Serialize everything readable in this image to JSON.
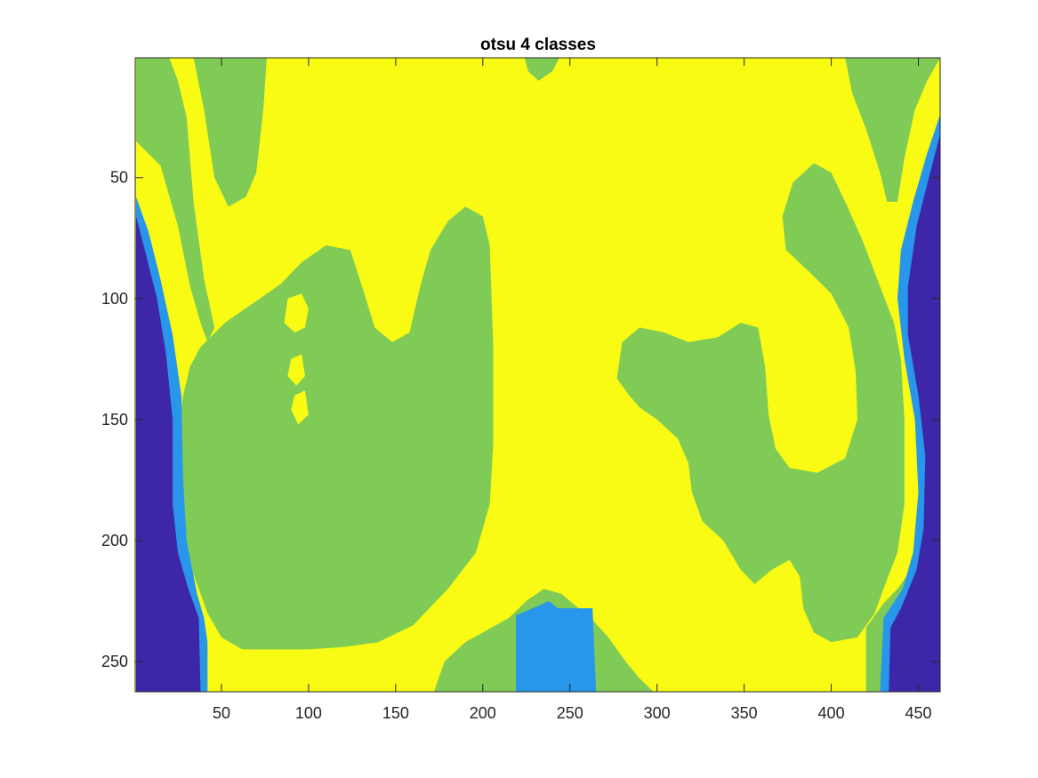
{
  "chart_data": {
    "type": "heatmap",
    "title": "otsu 4 classes",
    "xlabel": "",
    "ylabel": "",
    "xlim": [
      0.5,
      462.5
    ],
    "ylim": [
      0.5,
      262.5
    ],
    "y_reversed": true,
    "x_ticks": [
      50,
      100,
      150,
      200,
      250,
      300,
      350,
      400,
      450
    ],
    "y_ticks": [
      50,
      100,
      150,
      200,
      250
    ],
    "classes": [
      {
        "label": "1",
        "color": "#3E26A8"
      },
      {
        "label": "2",
        "color": "#2896EA"
      },
      {
        "label": "3",
        "color": "#7FCB56"
      },
      {
        "label": "4",
        "color": "#F9FB14"
      }
    ],
    "background_class": 4,
    "regions": [
      {
        "class": 3,
        "points": [
          [
            1,
            35
          ],
          [
            15,
            45
          ],
          [
            25,
            70
          ],
          [
            32,
            95
          ],
          [
            38,
            110
          ],
          [
            42,
            118
          ],
          [
            46,
            112
          ],
          [
            40,
            92
          ],
          [
            34,
            60
          ],
          [
            30,
            25
          ],
          [
            25,
            10
          ],
          [
            20,
            0.5
          ],
          [
            1,
            0.5
          ]
        ]
      },
      {
        "class": 3,
        "points": [
          [
            34,
            0.5
          ],
          [
            40,
            22
          ],
          [
            46,
            50
          ],
          [
            54,
            62
          ],
          [
            64,
            58
          ],
          [
            70,
            48
          ],
          [
            74,
            22
          ],
          [
            76,
            0.5
          ]
        ]
      },
      {
        "class": 3,
        "points": [
          [
            38,
            120
          ],
          [
            52,
            110
          ],
          [
            68,
            102
          ],
          [
            84,
            94
          ],
          [
            96,
            85
          ],
          [
            110,
            78
          ],
          [
            124,
            80
          ],
          [
            132,
            98
          ],
          [
            138,
            112
          ],
          [
            148,
            118
          ],
          [
            158,
            114
          ],
          [
            164,
            95
          ],
          [
            170,
            80
          ],
          [
            180,
            68
          ],
          [
            190,
            62
          ],
          [
            200,
            66
          ],
          [
            204,
            78
          ],
          [
            206,
            120
          ],
          [
            206,
            160
          ],
          [
            204,
            185
          ],
          [
            196,
            205
          ],
          [
            180,
            220
          ],
          [
            160,
            235
          ],
          [
            140,
            242
          ],
          [
            120,
            244
          ],
          [
            100,
            245
          ],
          [
            80,
            245
          ],
          [
            62,
            245
          ],
          [
            50,
            240
          ],
          [
            42,
            230
          ],
          [
            32,
            210
          ],
          [
            26,
            185
          ],
          [
            24,
            160
          ],
          [
            28,
            140
          ],
          [
            32,
            128
          ]
        ]
      },
      {
        "class": 4,
        "points": [
          [
            88,
            100
          ],
          [
            96,
            98
          ],
          [
            100,
            104
          ],
          [
            98,
            112
          ],
          [
            92,
            114
          ],
          [
            86,
            110
          ]
        ]
      },
      {
        "class": 4,
        "points": [
          [
            90,
            125
          ],
          [
            96,
            123
          ],
          [
            98,
            132
          ],
          [
            93,
            136
          ],
          [
            88,
            132
          ]
        ]
      },
      {
        "class": 4,
        "points": [
          [
            92,
            140
          ],
          [
            98,
            138
          ],
          [
            100,
            148
          ],
          [
            94,
            152
          ],
          [
            90,
            146
          ]
        ]
      },
      {
        "class": 3,
        "points": [
          [
            172,
            262.5
          ],
          [
            178,
            250
          ],
          [
            190,
            242
          ],
          [
            205,
            236
          ],
          [
            215,
            232
          ],
          [
            225,
            225
          ],
          [
            235,
            220
          ],
          [
            245,
            222
          ],
          [
            255,
            228
          ],
          [
            262,
            232
          ],
          [
            272,
            240
          ],
          [
            282,
            250
          ],
          [
            290,
            257
          ],
          [
            298,
            262.5
          ]
        ]
      },
      {
        "class": 2,
        "points": [
          [
            219,
            231
          ],
          [
            232,
            227
          ],
          [
            238,
            225
          ],
          [
            243,
            228
          ],
          [
            263,
            228
          ],
          [
            265,
            262.5
          ],
          [
            219,
            262.5
          ]
        ]
      },
      {
        "class": 3,
        "points": [
          [
            224,
            0.5
          ],
          [
            226,
            6
          ],
          [
            232,
            10
          ],
          [
            240,
            6
          ],
          [
            244,
            0.5
          ]
        ]
      },
      {
        "class": 3,
        "points": [
          [
            277,
            133
          ],
          [
            280,
            118
          ],
          [
            290,
            112
          ],
          [
            304,
            114
          ],
          [
            318,
            118
          ],
          [
            335,
            116
          ],
          [
            348,
            110
          ],
          [
            358,
            112
          ],
          [
            362,
            128
          ],
          [
            364,
            148
          ],
          [
            368,
            162
          ],
          [
            376,
            170
          ],
          [
            392,
            172
          ],
          [
            408,
            166
          ],
          [
            415,
            150
          ],
          [
            414,
            130
          ],
          [
            410,
            112
          ],
          [
            400,
            98
          ],
          [
            386,
            88
          ],
          [
            374,
            80
          ],
          [
            372,
            66
          ],
          [
            378,
            52
          ],
          [
            390,
            44
          ],
          [
            400,
            48
          ],
          [
            408,
            60
          ],
          [
            418,
            76
          ],
          [
            428,
            95
          ],
          [
            436,
            110
          ],
          [
            440,
            125
          ],
          [
            442,
            150
          ],
          [
            442,
            185
          ],
          [
            438,
            205
          ],
          [
            430,
            220
          ],
          [
            425,
            230
          ],
          [
            415,
            240
          ],
          [
            400,
            242
          ],
          [
            390,
            238
          ],
          [
            384,
            228
          ],
          [
            382,
            215
          ],
          [
            376,
            208
          ],
          [
            366,
            212
          ],
          [
            356,
            218
          ],
          [
            348,
            212
          ],
          [
            338,
            200
          ],
          [
            326,
            192
          ],
          [
            320,
            180
          ],
          [
            318,
            168
          ],
          [
            312,
            158
          ],
          [
            300,
            150
          ],
          [
            290,
            145
          ],
          [
            284,
            140
          ]
        ]
      },
      {
        "class": 3,
        "points": [
          [
            408,
            0.5
          ],
          [
            412,
            15
          ],
          [
            420,
            30
          ],
          [
            428,
            48
          ],
          [
            432,
            60
          ],
          [
            438,
            60
          ],
          [
            442,
            42
          ],
          [
            448,
            22
          ],
          [
            455,
            10
          ],
          [
            462.5,
            0.5
          ]
        ]
      },
      {
        "class": 3,
        "points": [
          [
            420,
            236
          ],
          [
            430,
            226
          ],
          [
            438,
            220
          ],
          [
            446,
            212
          ],
          [
            450,
            220
          ],
          [
            452,
            240
          ],
          [
            452,
            262.5
          ],
          [
            420,
            262.5
          ]
        ]
      },
      {
        "class": 2,
        "points": [
          [
            1,
            58
          ],
          [
            8,
            72
          ],
          [
            15,
            92
          ],
          [
            22,
            115
          ],
          [
            27,
            140
          ],
          [
            28,
            175
          ],
          [
            30,
            200
          ],
          [
            36,
            222
          ],
          [
            40,
            232
          ],
          [
            42,
            242
          ],
          [
            42,
            262.5
          ],
          [
            1,
            262.5
          ]
        ]
      },
      {
        "class": 1,
        "points": [
          [
            1,
            66
          ],
          [
            6,
            80
          ],
          [
            13,
            100
          ],
          [
            18,
            122
          ],
          [
            22,
            150
          ],
          [
            22,
            185
          ],
          [
            25,
            205
          ],
          [
            31,
            220
          ],
          [
            37,
            232
          ],
          [
            38,
            262.5
          ],
          [
            1,
            262.5
          ]
        ]
      },
      {
        "class": 2,
        "points": [
          [
            462.5,
            24
          ],
          [
            455,
            40
          ],
          [
            447,
            60
          ],
          [
            440,
            80
          ],
          [
            438,
            100
          ],
          [
            442,
            125
          ],
          [
            448,
            150
          ],
          [
            450,
            180
          ],
          [
            447,
            205
          ],
          [
            441,
            220
          ],
          [
            430,
            232
          ],
          [
            428,
            262.5
          ],
          [
            462.5,
            262.5
          ]
        ]
      },
      {
        "class": 1,
        "points": [
          [
            462.5,
            32
          ],
          [
            456,
            50
          ],
          [
            449,
            70
          ],
          [
            444,
            95
          ],
          [
            444,
            115
          ],
          [
            450,
            140
          ],
          [
            454,
            165
          ],
          [
            453,
            195
          ],
          [
            449,
            212
          ],
          [
            440,
            228
          ],
          [
            434,
            236
          ],
          [
            433,
            262.5
          ],
          [
            462.5,
            262.5
          ]
        ]
      }
    ]
  }
}
